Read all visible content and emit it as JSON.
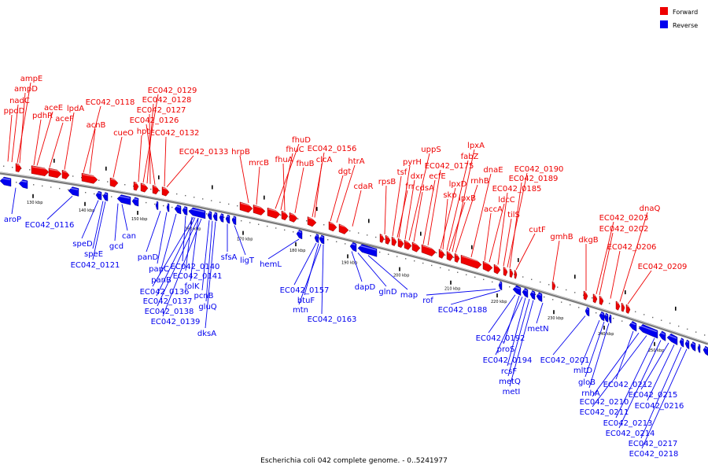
{
  "colors": {
    "forward": "#ee0000",
    "reverse": "#0000ee",
    "backbone": "#7a7a7a"
  },
  "legend": [
    {
      "label": "Forward",
      "color": "#ee0000"
    },
    {
      "label": "Reverse",
      "color": "#0000ee"
    }
  ],
  "caption": "Escherichia coli 042 complete genome. - 0..5241977",
  "ticks": [
    "130 kbp",
    "140 kbp",
    "150 kbp",
    "160 kbp",
    "170 kbp",
    "180 kbp",
    "190 kbp",
    "200 kbp",
    "210 kbp",
    "220 kbp",
    "230 kbp",
    "240 kbp",
    "250 kbp"
  ],
  "forward_genes": [
    "ampE",
    "ampD",
    "nadC",
    "ppdD",
    "aceE",
    "pdhR",
    "aceF",
    "lpdA",
    "EC042_0118",
    "acnB",
    "EC042_0129",
    "EC042_0128",
    "EC042_0127",
    "EC042_0126",
    "hpt",
    "cueO",
    "EC042_0132",
    "EC042_0133",
    "hrpB",
    "mrcB",
    "fhuD",
    "fhuC",
    "fhuA",
    "fhuB",
    "EC042_0156",
    "clcA",
    "htrA",
    "dgt",
    "cdaR",
    "uppS",
    "pyrH",
    "tsf",
    "rpsB",
    "dxr",
    "frr",
    "cdsA",
    "ecfE",
    "EC042_0175",
    "fabZ",
    "lpxA",
    "lpxD",
    "rnhB",
    "skp",
    "lpxB",
    "dnaE",
    "EC042_0190",
    "EC042_0189",
    "EC042_0185",
    "ldcC",
    "accA",
    "tilS",
    "cutF",
    "gmhB",
    "dkgB",
    "dnaQ",
    "EC042_0203",
    "EC042_0202",
    "EC042_0206",
    "EC042_0209"
  ],
  "reverse_genes": [
    "aroP",
    "EC042_0116",
    "speD",
    "speE",
    "EC042_0121",
    "can",
    "gcd",
    "panD",
    "panC",
    "panB",
    "EC042_0140",
    "EC042_0141",
    "EC042_0136",
    "folK",
    "EC042_0137",
    "pcnB",
    "EC042_0138",
    "gluQ",
    "EC042_0139",
    "dksA",
    "sfsA",
    "ligT",
    "hemL",
    "EC042_0157",
    "btuF",
    "mtn",
    "EC042_0163",
    "dapD",
    "glnD",
    "map",
    "rof",
    "EC042_0188",
    "metN",
    "EC042_0192",
    "proS",
    "EC042_0194",
    "rcsF",
    "metQ",
    "metI",
    "EC042_0201",
    "mltD",
    "gloB",
    "rnhA",
    "EC042_0212",
    "EC042_0210",
    "EC042_0211",
    "EC042_0215",
    "EC042_0216",
    "EC042_0213",
    "EC042_0214",
    "EC042_0217",
    "EC042_0218"
  ]
}
